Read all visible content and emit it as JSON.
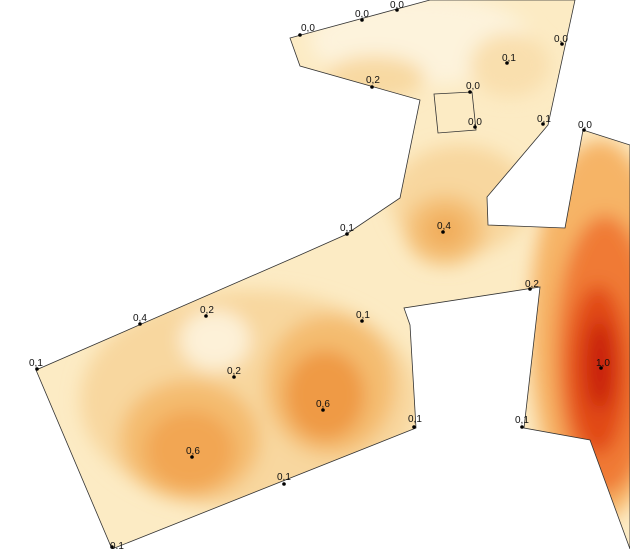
{
  "map": {
    "legend": {
      "low": "#fff3dc",
      "mid": "#f6a24a",
      "high": "#d62a0a"
    },
    "points": [
      {
        "id": "p1",
        "value": "0,0",
        "level": 0.0
      },
      {
        "id": "p2",
        "value": "0,0",
        "level": 0.0
      },
      {
        "id": "p3",
        "value": "0,0",
        "level": 0.0
      },
      {
        "id": "p4",
        "value": "0,1",
        "level": 0.1
      },
      {
        "id": "p5",
        "value": "0,0",
        "level": 0.0
      },
      {
        "id": "p6",
        "value": "0,2",
        "level": 0.2
      },
      {
        "id": "p7",
        "value": "0,0",
        "level": 0.0
      },
      {
        "id": "p8",
        "value": "0,0",
        "level": 0.0
      },
      {
        "id": "p9",
        "value": "0,1",
        "level": 0.1
      },
      {
        "id": "p10",
        "value": "0,0",
        "level": 0.0
      },
      {
        "id": "p11",
        "value": "0,4",
        "level": 0.4
      },
      {
        "id": "p12",
        "value": "0,1",
        "level": 0.1
      },
      {
        "id": "p13",
        "value": "0,2",
        "level": 0.2
      },
      {
        "id": "p14",
        "value": "0,4",
        "level": 0.4
      },
      {
        "id": "p15",
        "value": "0,2",
        "level": 0.2
      },
      {
        "id": "p16",
        "value": "0,1",
        "level": 0.1
      },
      {
        "id": "p17",
        "value": "0,1",
        "level": 0.1
      },
      {
        "id": "p18",
        "value": "0,2",
        "level": 0.2
      },
      {
        "id": "p19",
        "value": "0,6",
        "level": 0.6
      },
      {
        "id": "p20",
        "value": "1,0",
        "level": 1.0
      },
      {
        "id": "p21",
        "value": "0,1",
        "level": 0.1
      },
      {
        "id": "p22",
        "value": "0,1",
        "level": 0.1
      },
      {
        "id": "p23",
        "value": "0,6",
        "level": 0.6
      },
      {
        "id": "p24",
        "value": "0,1",
        "level": 0.1
      },
      {
        "id": "p25",
        "value": "0,1",
        "level": 0.1
      }
    ]
  }
}
